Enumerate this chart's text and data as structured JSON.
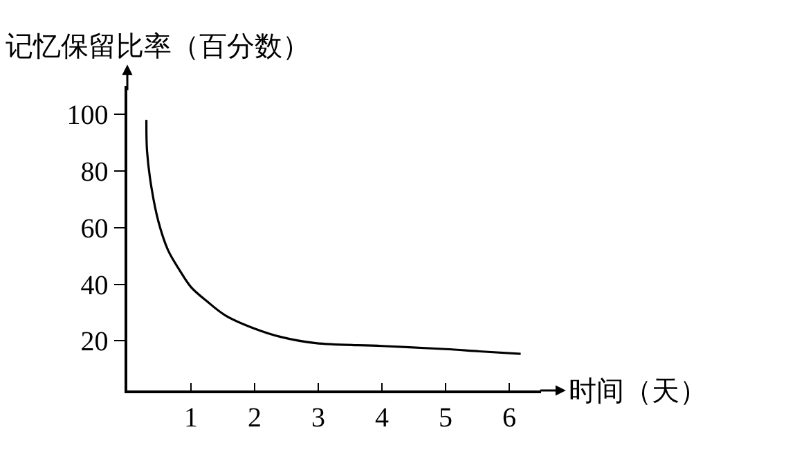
{
  "chart_data": {
    "type": "line",
    "ylabel": "记忆保留比率（百分数）",
    "xlabel": "时间（天）",
    "x": [
      0.3,
      0.31,
      0.38,
      0.49,
      0.64,
      0.82,
      1.0,
      1.25,
      1.54,
      1.98,
      2.41,
      2.96,
      4.0,
      5.0,
      5.53,
      6.18
    ],
    "series": [
      {
        "color": "#000000",
        "values": [
          98,
          87,
          74,
          62,
          52,
          45,
          39,
          34,
          29,
          24.5,
          21.4,
          19.2,
          18.2,
          17.1,
          16.3,
          15.4
        ]
      }
    ],
    "xlim": [
      0,
      6.5
    ],
    "ylim": [
      2.5,
      110
    ],
    "xticks": [
      1,
      2,
      3,
      4,
      5,
      6
    ],
    "yticks": [
      20,
      40,
      60,
      80,
      100
    ],
    "marker": "none",
    "line_style": "solid"
  }
}
